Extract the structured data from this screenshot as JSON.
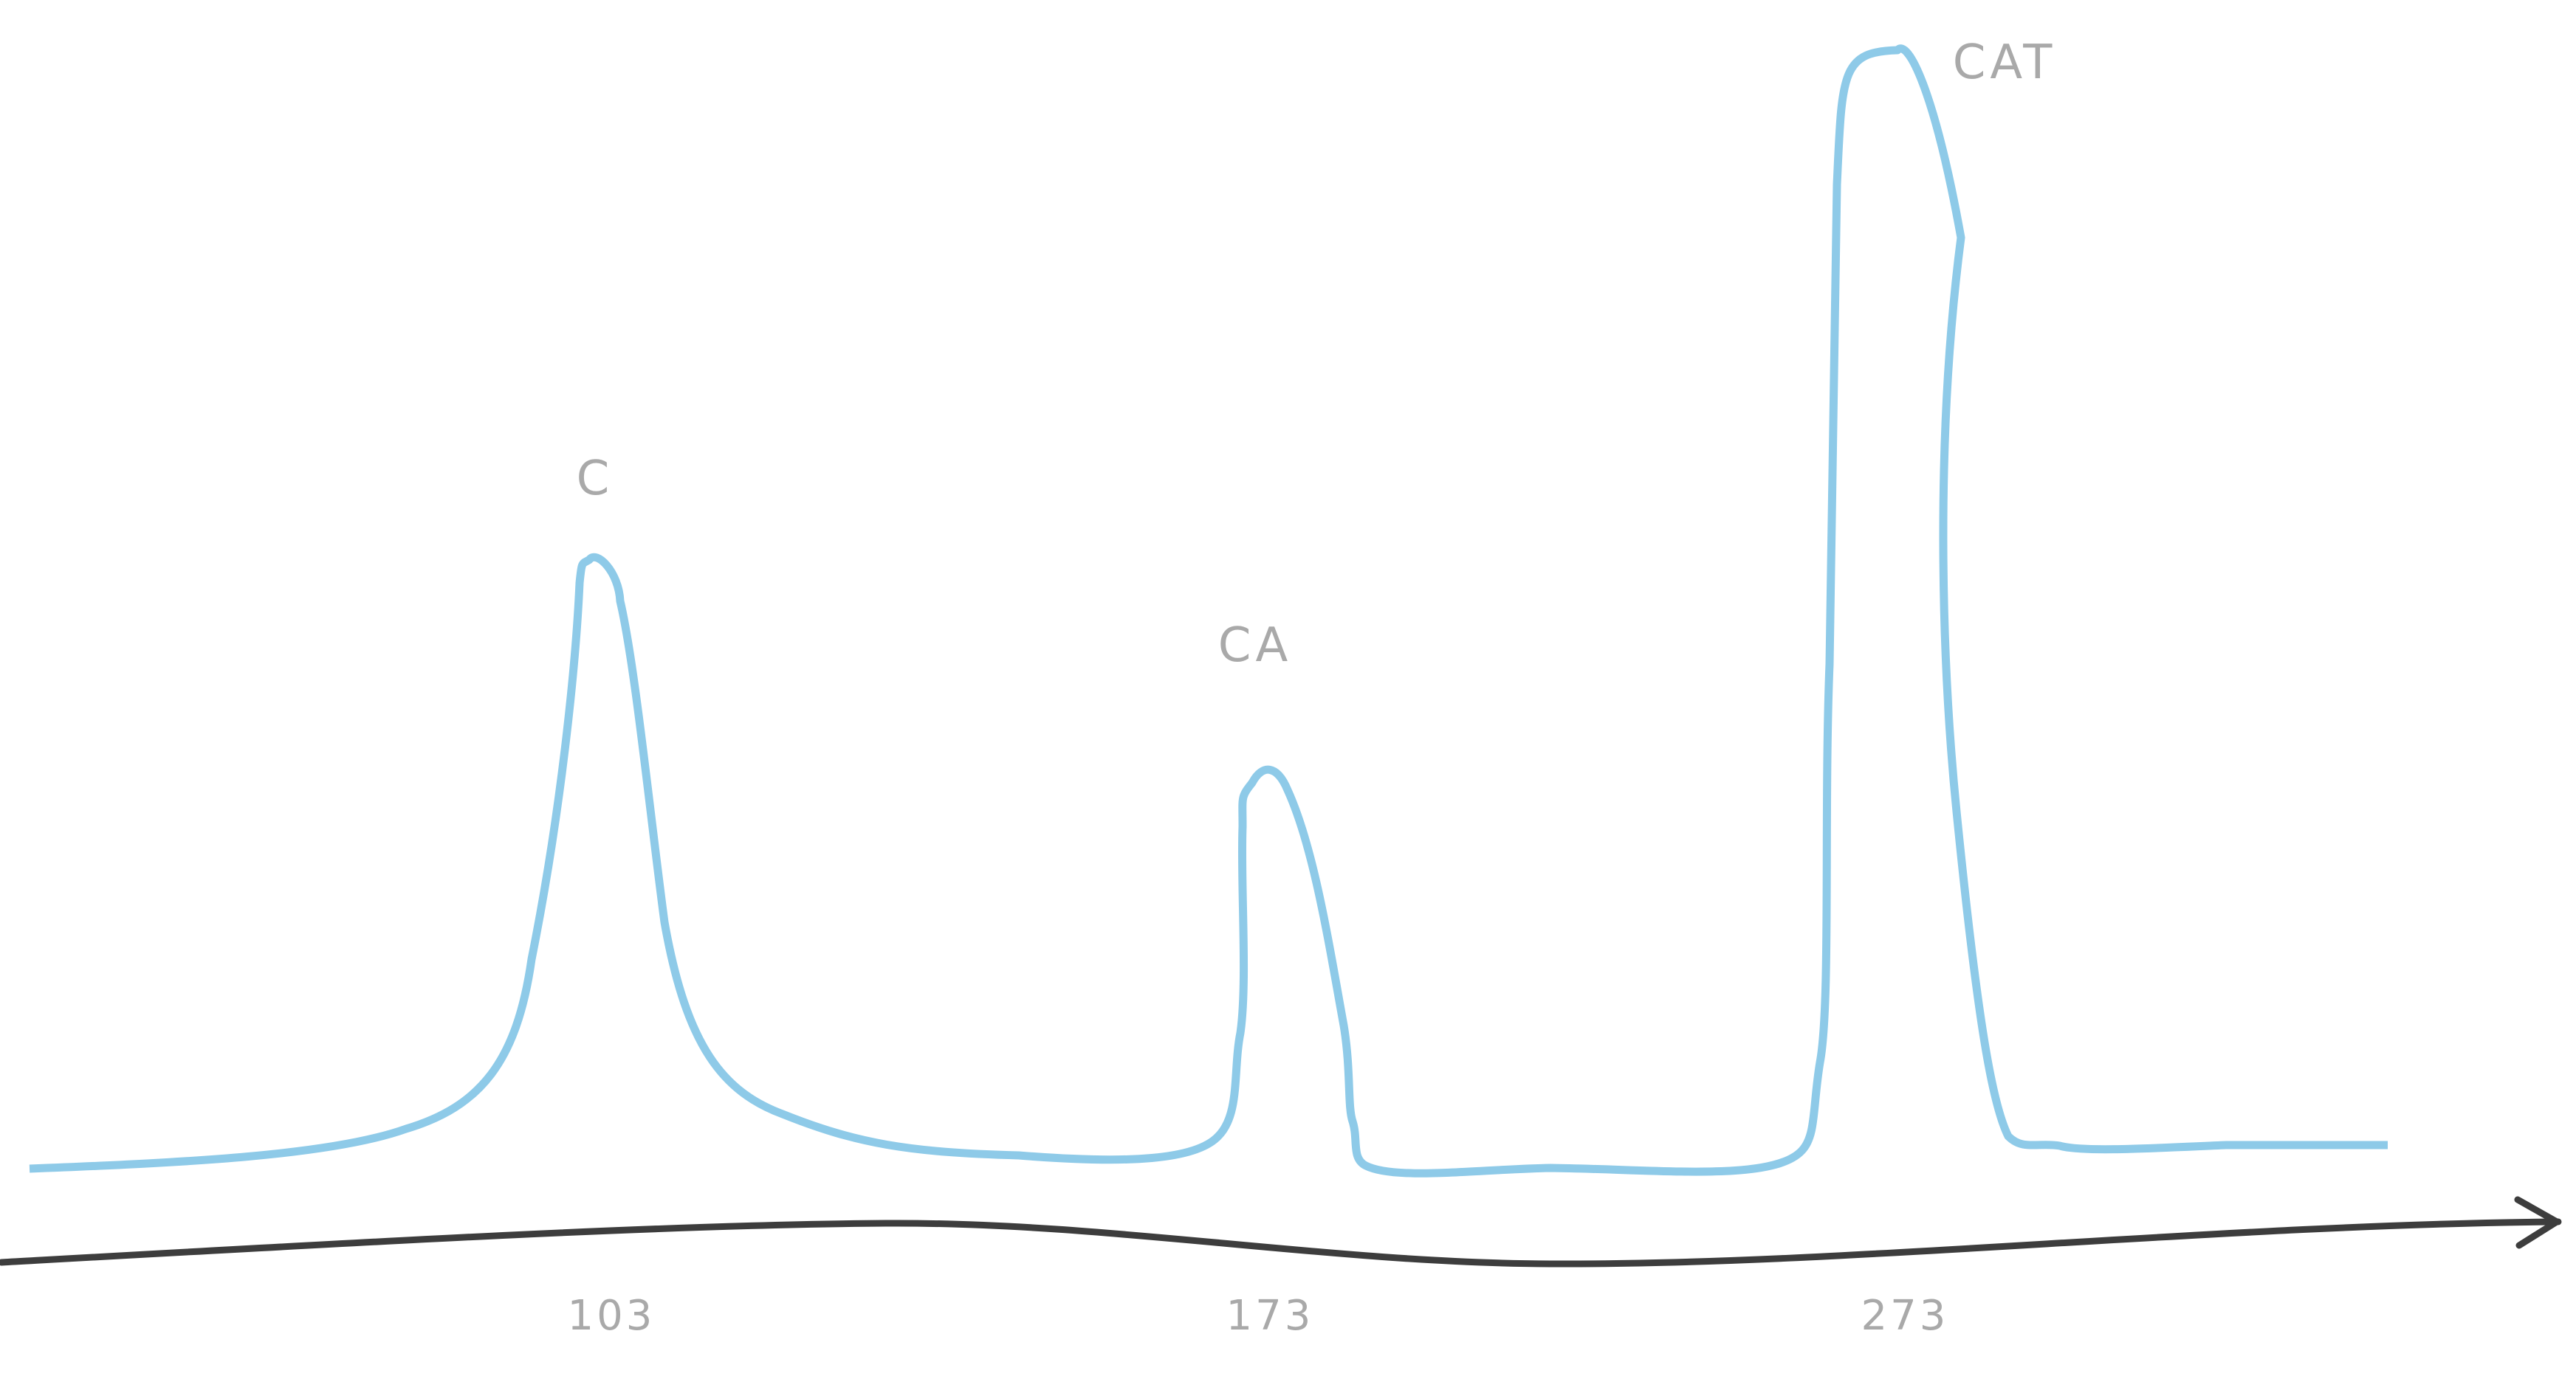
{
  "chart_data": {
    "type": "line",
    "title": "",
    "xlabel": "",
    "ylabel": "",
    "x_ticks": [
      {
        "value": 103,
        "label": "103"
      },
      {
        "value": 173,
        "label": "173"
      },
      {
        "value": 273,
        "label": "273"
      }
    ],
    "series": [
      {
        "color": "#8ecae8",
        "peaks": [
          {
            "x": 103,
            "relative_height": 0.54,
            "label": "C"
          },
          {
            "x": 173,
            "relative_height": 0.35,
            "label": "CA"
          },
          {
            "x": 273,
            "relative_height": 1.0,
            "label": "CAT"
          }
        ]
      }
    ],
    "axis_color": "#3d3d3d",
    "label_color": "#a9a9a9",
    "grid": false,
    "legend": "none"
  }
}
